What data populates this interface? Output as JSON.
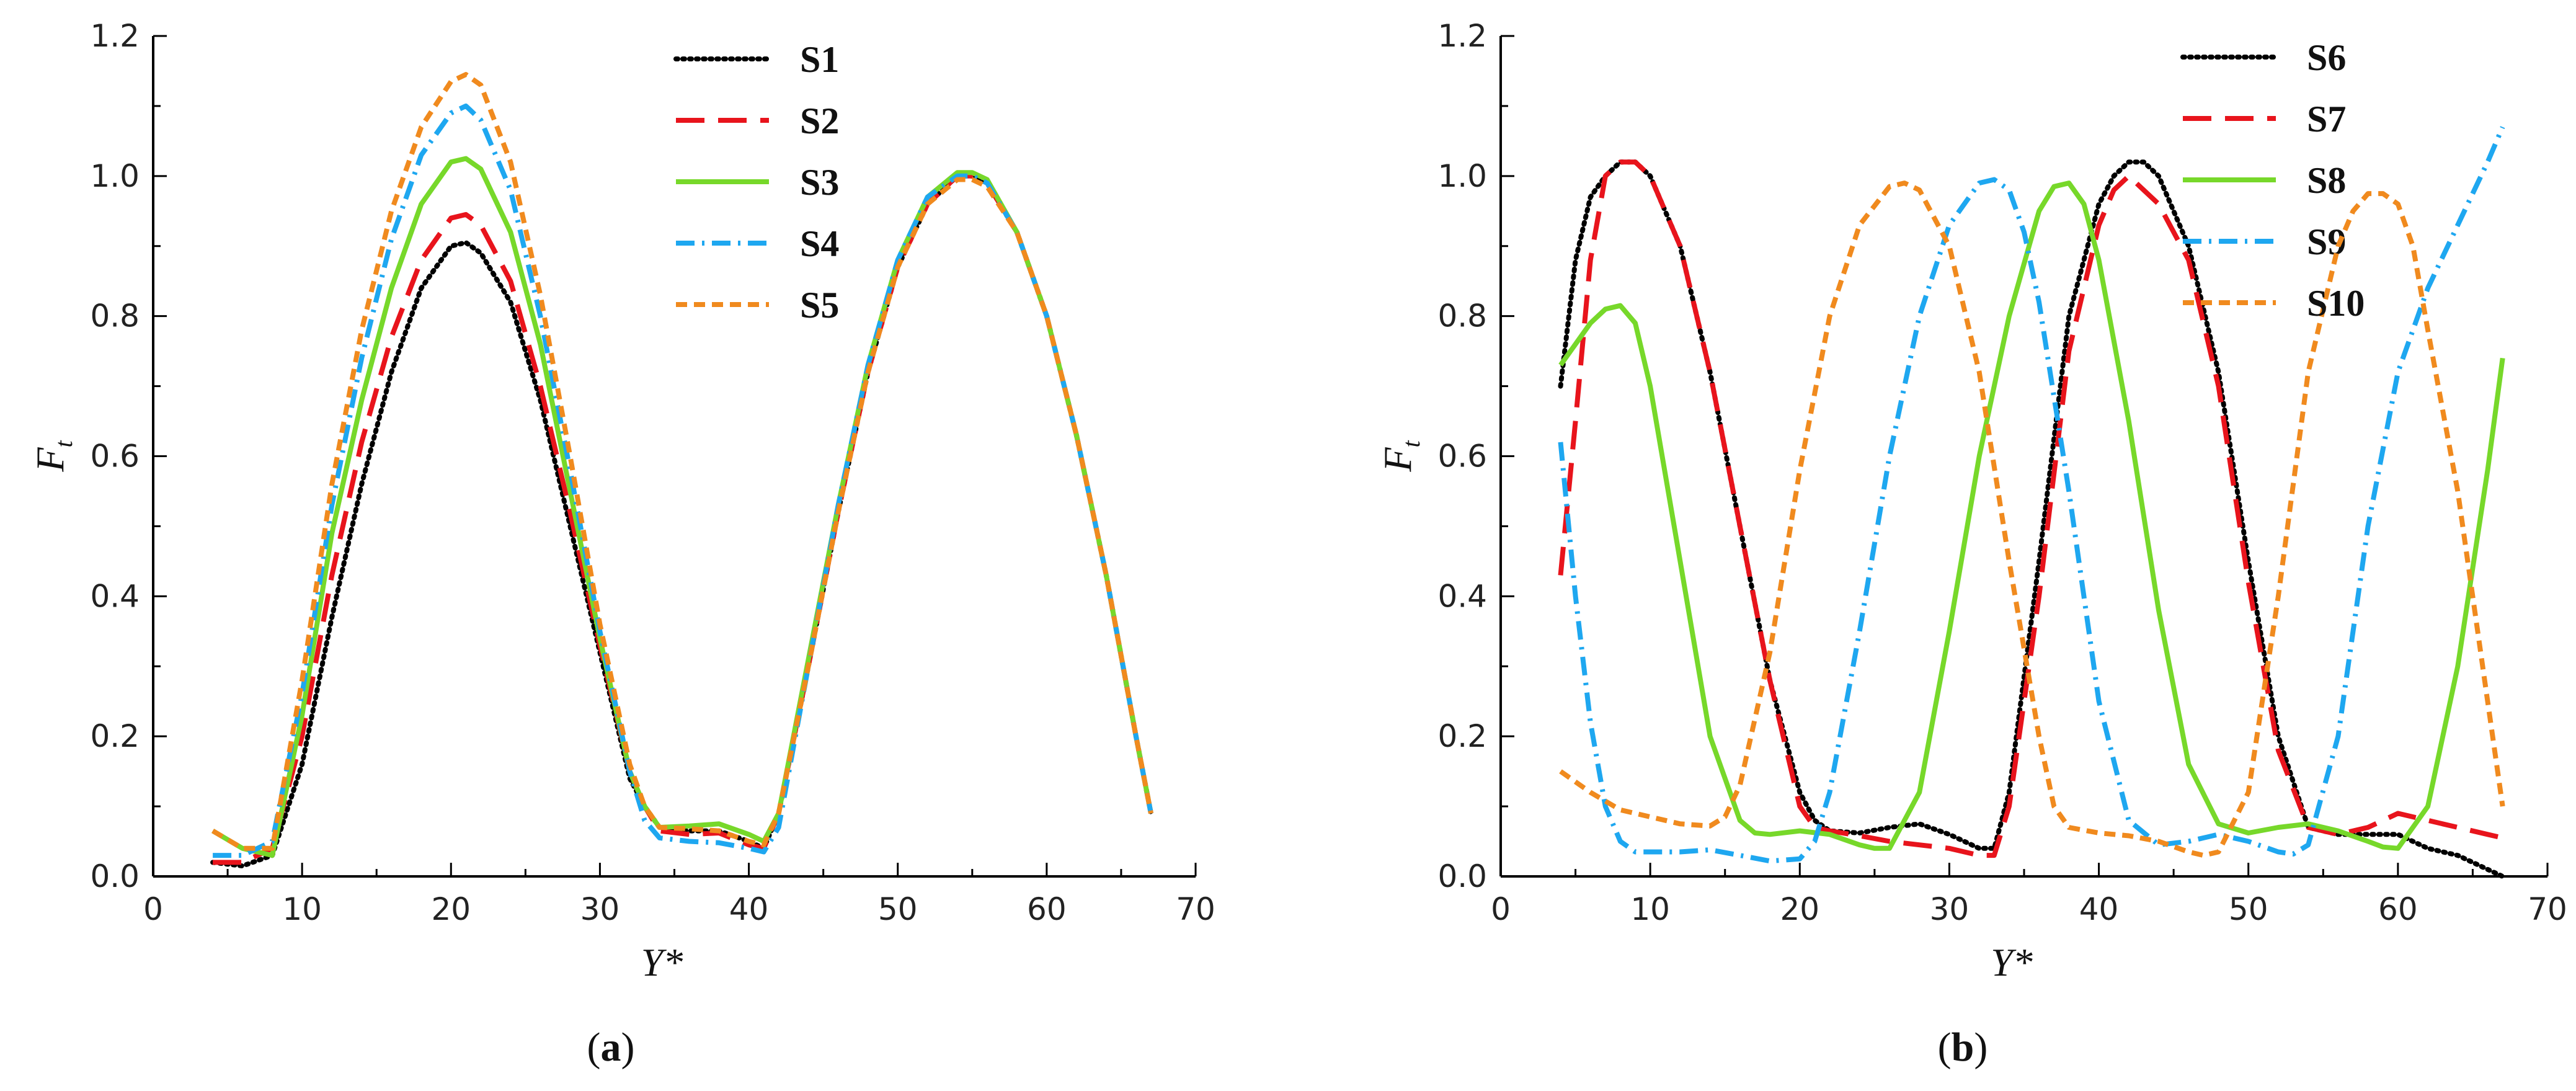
{
  "chart_data": [
    {
      "type": "line",
      "panel_label": "(a)",
      "panel_letter": "a",
      "xlabel": "Y*",
      "ylabel": "F",
      "ylabel_sub": "t",
      "xlim": [
        0,
        70
      ],
      "ylim": [
        0,
        1.2
      ],
      "xticks": [
        "0",
        "10",
        "20",
        "30",
        "40",
        "50",
        "60",
        "70"
      ],
      "yticks": [
        "0.0",
        "0.2",
        "0.4",
        "0.6",
        "0.8",
        "1.0",
        "1.2"
      ],
      "legend_position": "top-right",
      "grid": false,
      "series": [
        {
          "name": "S1",
          "color": "#000000",
          "style": "dotted",
          "x": [
            4,
            6,
            8,
            10,
            12,
            14,
            16,
            18,
            20,
            21,
            22,
            24,
            26,
            28,
            30,
            32,
            33,
            34,
            36,
            38,
            40,
            41,
            42,
            44,
            46,
            48,
            50,
            52,
            54,
            55,
            56,
            58,
            60,
            62,
            64,
            66,
            67
          ],
          "y": [
            0.02,
            0.015,
            0.03,
            0.16,
            0.37,
            0.56,
            0.72,
            0.84,
            0.9,
            0.905,
            0.89,
            0.82,
            0.68,
            0.5,
            0.32,
            0.14,
            0.1,
            0.07,
            0.065,
            0.065,
            0.05,
            0.04,
            0.09,
            0.3,
            0.52,
            0.72,
            0.87,
            0.96,
            1.0,
            1.0,
            0.99,
            0.92,
            0.8,
            0.63,
            0.43,
            0.2,
            0.09
          ]
        },
        {
          "name": "S2",
          "color": "#e8141c",
          "style": "dashed",
          "x": [
            4,
            6,
            8,
            10,
            12,
            14,
            16,
            18,
            20,
            21,
            22,
            24,
            26,
            28,
            30,
            32,
            33,
            34,
            36,
            38,
            40,
            41,
            42,
            44,
            46,
            48,
            50,
            52,
            54,
            55,
            56,
            58,
            60,
            62,
            64,
            66,
            67
          ],
          "y": [
            0.02,
            0.02,
            0.04,
            0.2,
            0.43,
            0.62,
            0.77,
            0.88,
            0.94,
            0.945,
            0.93,
            0.85,
            0.7,
            0.52,
            0.33,
            0.15,
            0.1,
            0.065,
            0.06,
            0.062,
            0.045,
            0.04,
            0.09,
            0.3,
            0.52,
            0.72,
            0.87,
            0.96,
            1.0,
            1.0,
            0.99,
            0.92,
            0.8,
            0.63,
            0.43,
            0.2,
            0.09
          ]
        },
        {
          "name": "S3",
          "color": "#77d82a",
          "style": "solid",
          "x": [
            4,
            6,
            8,
            10,
            12,
            14,
            16,
            18,
            20,
            21,
            22,
            24,
            26,
            28,
            30,
            32,
            33,
            34,
            36,
            38,
            40,
            41,
            42,
            44,
            46,
            48,
            50,
            52,
            54,
            55,
            56,
            58,
            60,
            62,
            64,
            66,
            67
          ],
          "y": [
            0.065,
            0.04,
            0.03,
            0.23,
            0.49,
            0.68,
            0.84,
            0.96,
            1.02,
            1.025,
            1.01,
            0.92,
            0.76,
            0.55,
            0.34,
            0.15,
            0.1,
            0.07,
            0.072,
            0.075,
            0.06,
            0.05,
            0.09,
            0.31,
            0.53,
            0.73,
            0.88,
            0.97,
            1.005,
            1.005,
            0.995,
            0.92,
            0.8,
            0.63,
            0.43,
            0.2,
            0.09
          ]
        },
        {
          "name": "S4",
          "color": "#1ea7f0",
          "style": "dashdot",
          "x": [
            4,
            6,
            8,
            10,
            12,
            14,
            16,
            18,
            20,
            21,
            22,
            24,
            26,
            28,
            30,
            32,
            33,
            34,
            36,
            38,
            40,
            41,
            42,
            44,
            46,
            48,
            50,
            52,
            54,
            55,
            56,
            58,
            60,
            62,
            64,
            66,
            67
          ],
          "y": [
            0.03,
            0.03,
            0.05,
            0.26,
            0.53,
            0.74,
            0.91,
            1.03,
            1.09,
            1.1,
            1.08,
            0.98,
            0.8,
            0.58,
            0.35,
            0.15,
            0.08,
            0.055,
            0.05,
            0.048,
            0.04,
            0.035,
            0.07,
            0.3,
            0.53,
            0.73,
            0.88,
            0.97,
            1.0,
            1.0,
            0.99,
            0.92,
            0.8,
            0.63,
            0.43,
            0.2,
            0.09
          ]
        },
        {
          "name": "S5",
          "color": "#f08a1e",
          "style": "shortdash",
          "x": [
            4,
            6,
            8,
            10,
            12,
            14,
            16,
            18,
            20,
            21,
            22,
            24,
            26,
            28,
            30,
            32,
            33,
            34,
            36,
            38,
            40,
            41,
            42,
            44,
            46,
            48,
            50,
            52,
            54,
            55,
            56,
            58,
            60,
            62,
            64,
            66,
            67
          ],
          "y": [
            0.065,
            0.04,
            0.04,
            0.28,
            0.56,
            0.78,
            0.95,
            1.07,
            1.135,
            1.145,
            1.13,
            1.02,
            0.83,
            0.6,
            0.36,
            0.16,
            0.1,
            0.07,
            0.068,
            0.065,
            0.05,
            0.045,
            0.09,
            0.3,
            0.52,
            0.72,
            0.87,
            0.96,
            0.995,
            0.995,
            0.985,
            0.92,
            0.8,
            0.63,
            0.43,
            0.2,
            0.09
          ]
        }
      ]
    },
    {
      "type": "line",
      "panel_label": "(b)",
      "panel_letter": "b",
      "xlabel": "Y*",
      "ylabel": "F",
      "ylabel_sub": "t",
      "xlim": [
        0,
        70
      ],
      "ylim": [
        0,
        1.2
      ],
      "xticks": [
        "0",
        "10",
        "20",
        "30",
        "40",
        "50",
        "60",
        "70"
      ],
      "yticks": [
        "0.0",
        "0.2",
        "0.4",
        "0.6",
        "0.8",
        "1.0",
        "1.2"
      ],
      "legend_position": "top-right",
      "grid": false,
      "series": [
        {
          "name": "S6",
          "color": "#000000",
          "style": "dotted",
          "x": [
            4,
            5,
            6,
            7,
            8,
            9,
            10,
            12,
            14,
            16,
            18,
            20,
            21,
            22,
            24,
            26,
            28,
            30,
            32,
            33,
            34,
            36,
            38,
            40,
            41,
            42,
            43,
            44,
            46,
            48,
            50,
            52,
            54,
            56,
            58,
            60,
            62,
            64,
            66,
            67
          ],
          "y": [
            0.7,
            0.88,
            0.97,
            1.0,
            1.02,
            1.02,
            1.0,
            0.9,
            0.72,
            0.5,
            0.28,
            0.12,
            0.08,
            0.065,
            0.062,
            0.07,
            0.075,
            0.06,
            0.04,
            0.04,
            0.12,
            0.45,
            0.8,
            0.96,
            1.0,
            1.02,
            1.02,
            1.0,
            0.9,
            0.72,
            0.45,
            0.2,
            0.07,
            0.06,
            0.06,
            0.06,
            0.04,
            0.03,
            0.01,
            0.0
          ]
        },
        {
          "name": "S7",
          "color": "#e8141c",
          "style": "dashed",
          "x": [
            4,
            5,
            6,
            7,
            8,
            9,
            10,
            12,
            14,
            16,
            18,
            20,
            21,
            22,
            24,
            26,
            28,
            30,
            32,
            33,
            34,
            36,
            38,
            40,
            41,
            42,
            43,
            44,
            46,
            48,
            50,
            52,
            54,
            56,
            58,
            60,
            62,
            64,
            66,
            67
          ],
          "y": [
            0.43,
            0.65,
            0.88,
            1.0,
            1.02,
            1.02,
            1.0,
            0.9,
            0.72,
            0.5,
            0.28,
            0.1,
            0.07,
            0.065,
            0.058,
            0.05,
            0.045,
            0.04,
            0.03,
            0.03,
            0.1,
            0.4,
            0.75,
            0.93,
            0.98,
            1.0,
            0.98,
            0.96,
            0.88,
            0.7,
            0.42,
            0.18,
            0.07,
            0.06,
            0.07,
            0.09,
            0.08,
            0.07,
            0.06,
            0.055
          ]
        },
        {
          "name": "S8",
          "color": "#77d82a",
          "style": "solid",
          "x": [
            4,
            6,
            7,
            8,
            9,
            10,
            12,
            14,
            16,
            17,
            18,
            20,
            22,
            24,
            25,
            26,
            28,
            30,
            32,
            34,
            36,
            37,
            38,
            39,
            40,
            42,
            44,
            46,
            48,
            50,
            52,
            54,
            56,
            58,
            59,
            60,
            62,
            64,
            66,
            67
          ],
          "y": [
            0.73,
            0.79,
            0.81,
            0.815,
            0.79,
            0.7,
            0.45,
            0.2,
            0.08,
            0.062,
            0.06,
            0.065,
            0.06,
            0.045,
            0.04,
            0.04,
            0.12,
            0.35,
            0.6,
            0.8,
            0.95,
            0.985,
            0.99,
            0.96,
            0.88,
            0.65,
            0.38,
            0.16,
            0.075,
            0.062,
            0.07,
            0.075,
            0.065,
            0.05,
            0.042,
            0.04,
            0.1,
            0.3,
            0.58,
            0.74
          ]
        },
        {
          "name": "S9",
          "color": "#1ea7f0",
          "style": "dashdot",
          "x": [
            4,
            5,
            6,
            7,
            8,
            9,
            10,
            12,
            14,
            16,
            18,
            20,
            21,
            22,
            24,
            26,
            28,
            30,
            32,
            33,
            34,
            35,
            36,
            38,
            40,
            42,
            44,
            46,
            48,
            50,
            52,
            53,
            54,
            56,
            58,
            60,
            62,
            64,
            66,
            67
          ],
          "y": [
            0.62,
            0.4,
            0.22,
            0.1,
            0.05,
            0.035,
            0.035,
            0.035,
            0.038,
            0.03,
            0.022,
            0.025,
            0.05,
            0.12,
            0.35,
            0.6,
            0.8,
            0.93,
            0.99,
            0.995,
            0.98,
            0.92,
            0.82,
            0.55,
            0.25,
            0.08,
            0.045,
            0.05,
            0.06,
            0.05,
            0.035,
            0.032,
            0.045,
            0.2,
            0.5,
            0.72,
            0.84,
            0.93,
            1.02,
            1.07
          ]
        },
        {
          "name": "S10",
          "color": "#f08a1e",
          "style": "shortdash",
          "x": [
            4,
            6,
            8,
            10,
            12,
            14,
            15,
            16,
            18,
            20,
            22,
            24,
            26,
            27,
            28,
            30,
            32,
            34,
            36,
            37,
            38,
            40,
            42,
            44,
            46,
            47,
            48,
            50,
            52,
            54,
            56,
            57,
            58,
            59,
            60,
            61,
            62,
            64,
            66,
            67
          ],
          "y": [
            0.15,
            0.12,
            0.095,
            0.085,
            0.075,
            0.072,
            0.085,
            0.13,
            0.32,
            0.58,
            0.8,
            0.93,
            0.985,
            0.99,
            0.98,
            0.9,
            0.72,
            0.45,
            0.2,
            0.1,
            0.07,
            0.062,
            0.058,
            0.05,
            0.035,
            0.03,
            0.035,
            0.12,
            0.4,
            0.72,
            0.9,
            0.95,
            0.975,
            0.975,
            0.96,
            0.9,
            0.78,
            0.55,
            0.25,
            0.1
          ]
        }
      ]
    }
  ]
}
